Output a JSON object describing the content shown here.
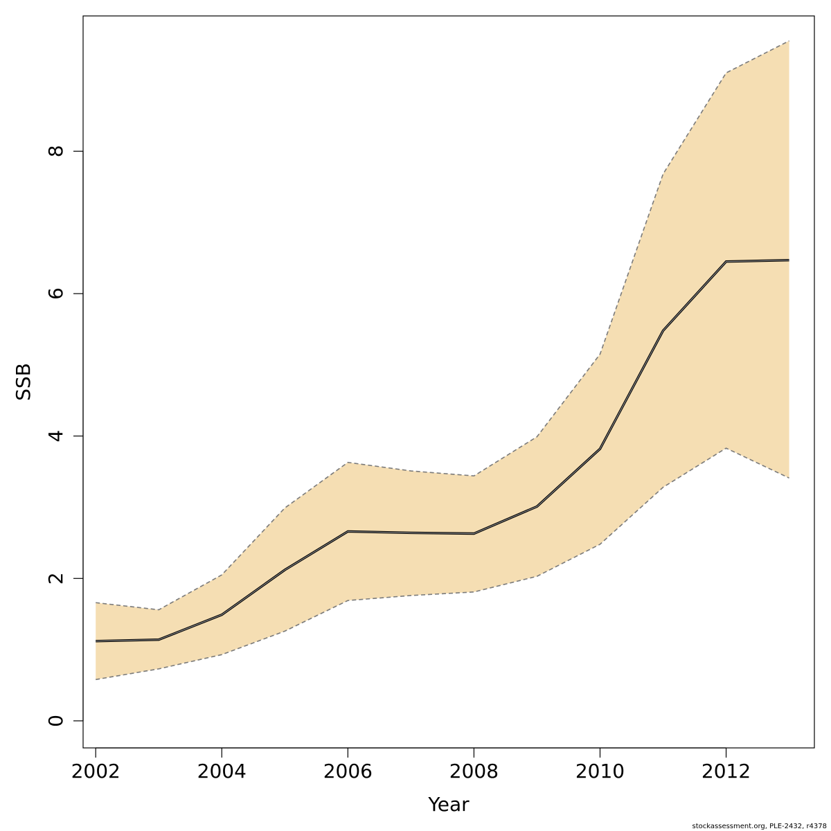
{
  "chart_data": {
    "type": "area",
    "xlabel": "Year",
    "ylabel": "SSB",
    "xlim": [
      2001.8,
      2013.4
    ],
    "ylim": [
      -0.38,
      9.9
    ],
    "x_ticks": [
      2002,
      2004,
      2006,
      2008,
      2010,
      2012
    ],
    "y_ticks": [
      0,
      2,
      4,
      6,
      8
    ],
    "x": [
      2002,
      2003,
      2004,
      2005,
      2006,
      2007,
      2008,
      2009,
      2010,
      2011,
      2012,
      2013
    ],
    "series": [
      {
        "role": "estimate",
        "values": [
          1.12,
          1.14,
          1.49,
          2.12,
          2.66,
          2.64,
          2.63,
          3.01,
          3.82,
          5.48,
          6.45,
          6.47
        ]
      },
      {
        "role": "upper",
        "values": [
          1.66,
          1.56,
          2.05,
          2.99,
          3.63,
          3.51,
          3.44,
          3.99,
          5.15,
          7.68,
          9.1,
          9.55
        ]
      },
      {
        "role": "lower",
        "values": [
          0.58,
          0.73,
          0.93,
          1.26,
          1.69,
          1.76,
          1.81,
          2.03,
          2.48,
          3.28,
          3.83,
          3.41
        ]
      }
    ],
    "grid": false,
    "colors": {
      "band": "#f5deb3",
      "band_edge": "#7a7a7a",
      "line": "#000000"
    }
  },
  "footer": "stockassessment.org, PLE-2432, r4378"
}
